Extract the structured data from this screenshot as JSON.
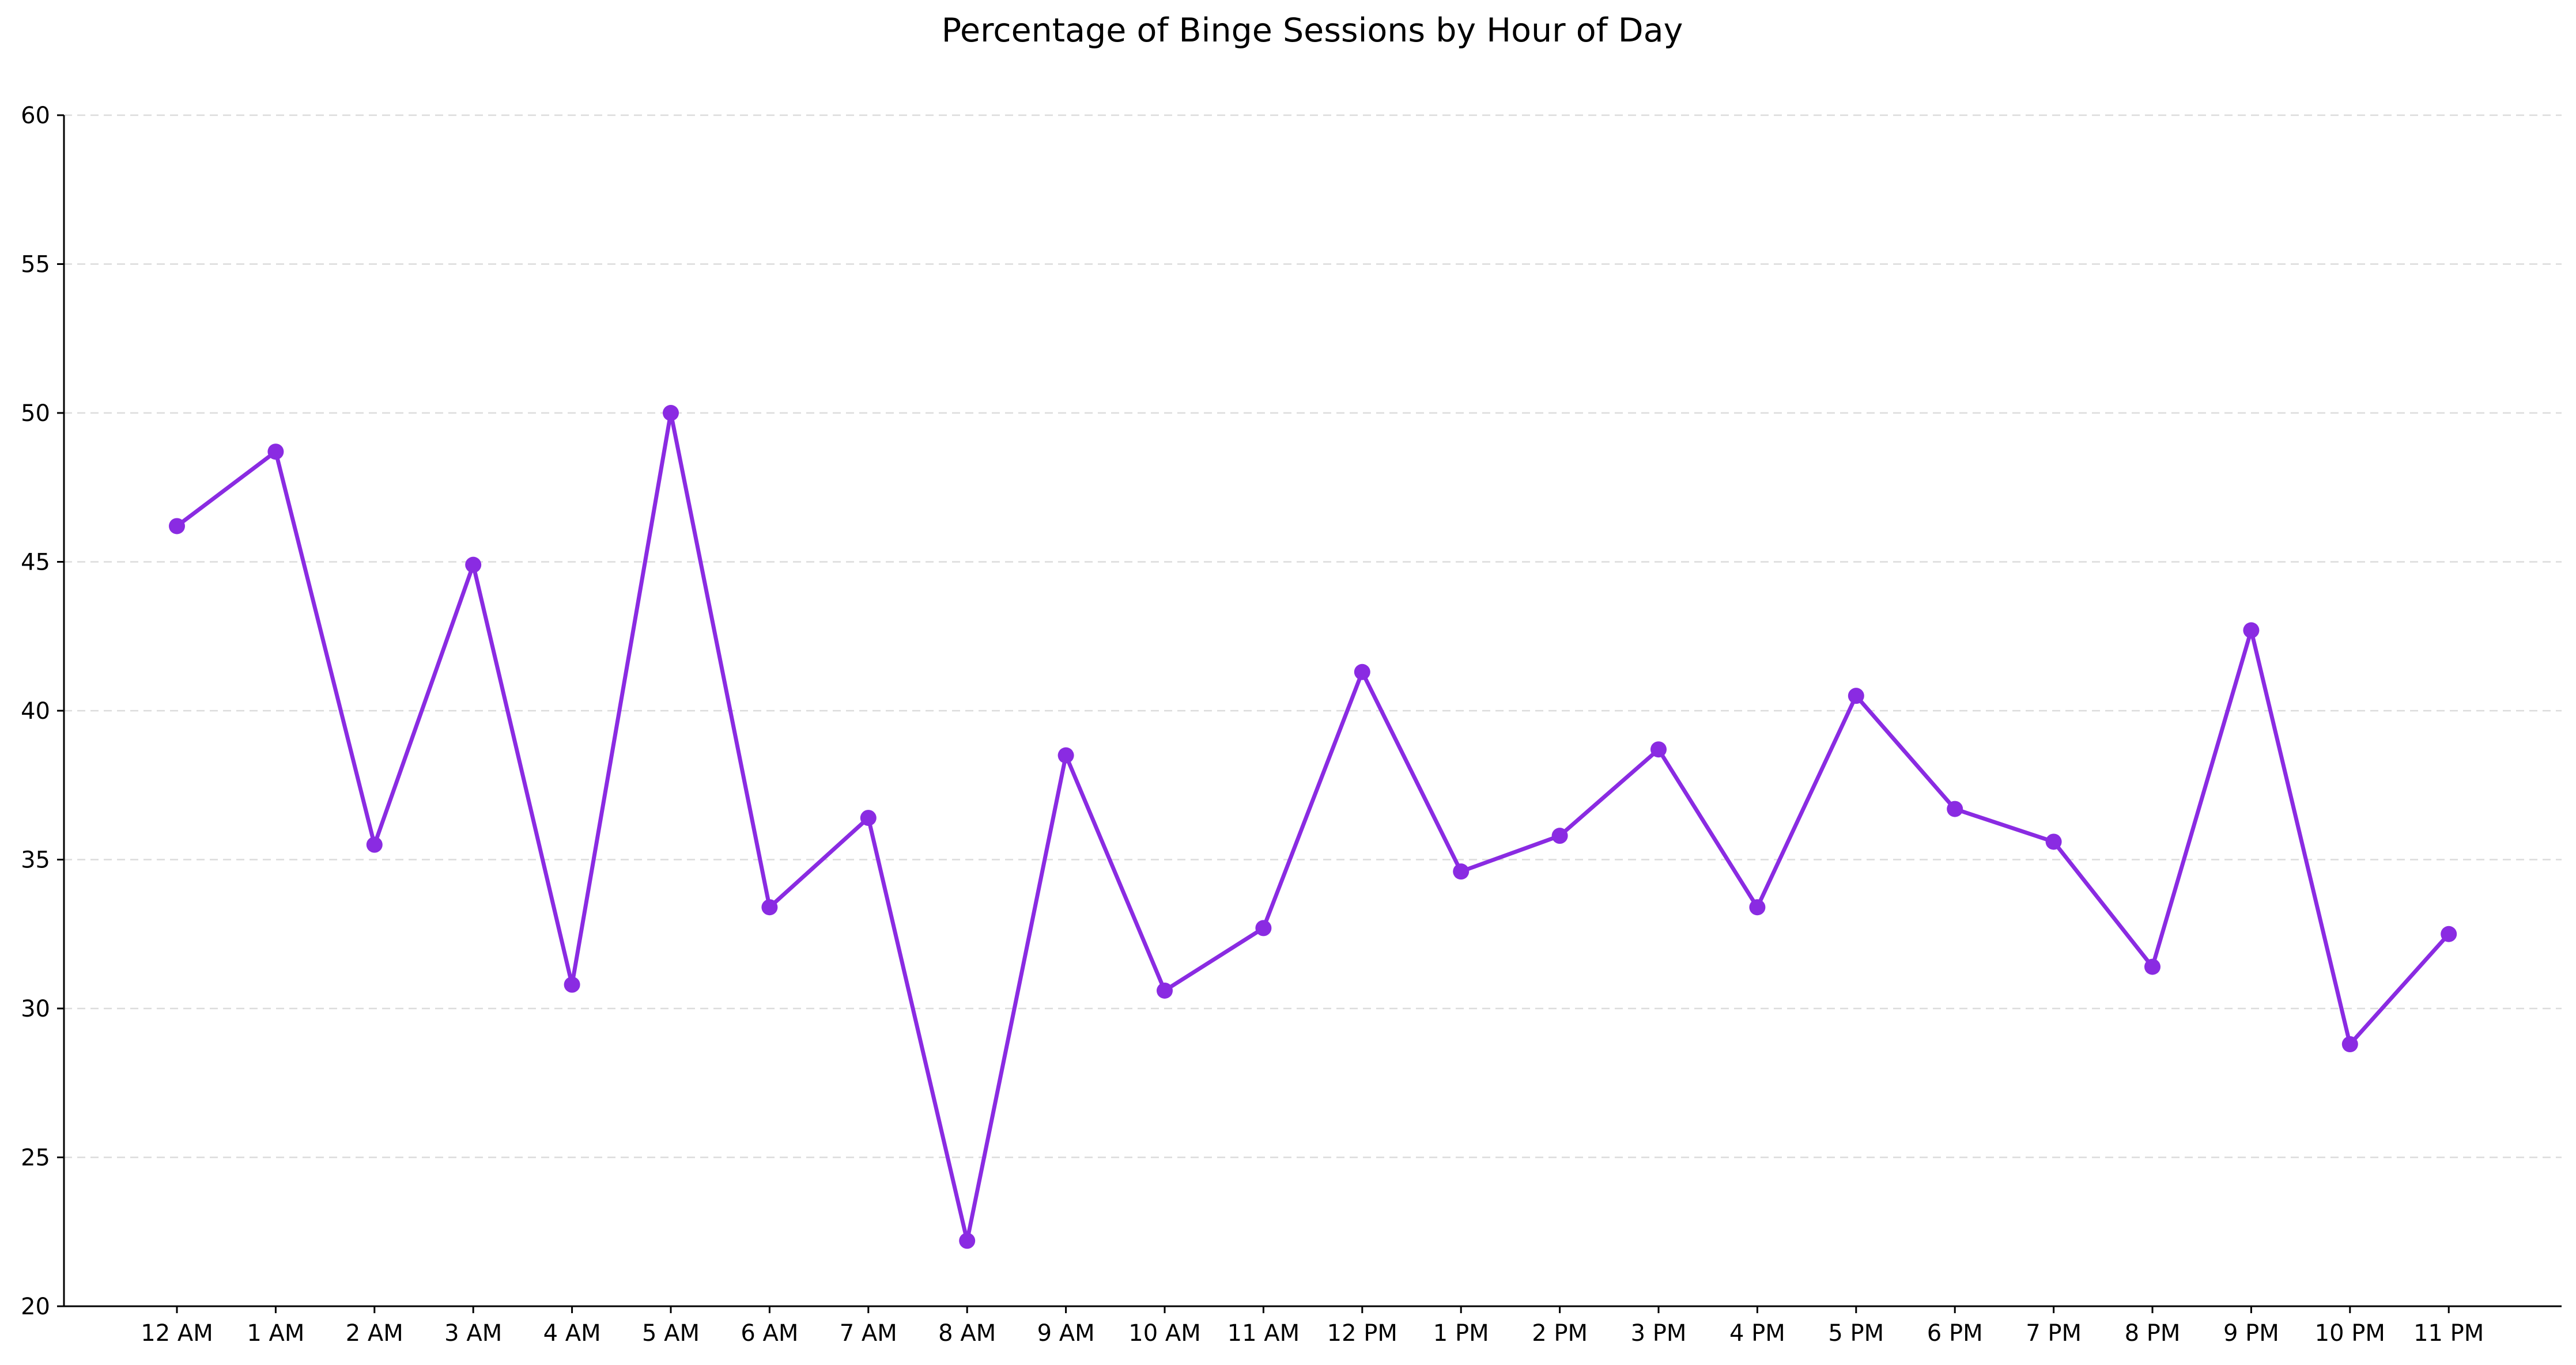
{
  "chart_data": {
    "type": "line",
    "title": "Percentage of Binge Sessions by Hour of Day",
    "xlabel": "",
    "ylabel": "",
    "categories": [
      "12 AM",
      "1 AM",
      "2 AM",
      "3 AM",
      "4 AM",
      "5 AM",
      "6 AM",
      "7 AM",
      "8 AM",
      "9 AM",
      "10 AM",
      "11 AM",
      "12 PM",
      "1 PM",
      "2 PM",
      "3 PM",
      "4 PM",
      "5 PM",
      "6 PM",
      "7 PM",
      "8 PM",
      "9 PM",
      "10 PM",
      "11 PM"
    ],
    "series": [
      {
        "values": [
          46.2,
          48.7,
          35.5,
          44.9,
          30.8,
          50.0,
          33.4,
          36.4,
          22.2,
          38.5,
          30.6,
          32.7,
          41.3,
          34.6,
          35.8,
          38.7,
          33.4,
          40.5,
          36.7,
          35.6,
          31.4,
          42.7,
          28.8,
          32.5
        ],
        "color": "#8a2be2"
      }
    ],
    "ylim": [
      20,
      60
    ],
    "yticks": [
      20,
      25,
      30,
      35,
      40,
      45,
      50,
      55,
      60
    ],
    "grid": "horizontal-dashed",
    "legend": "none",
    "axis_color": "#000000",
    "grid_color": "#dcdcdc"
  }
}
